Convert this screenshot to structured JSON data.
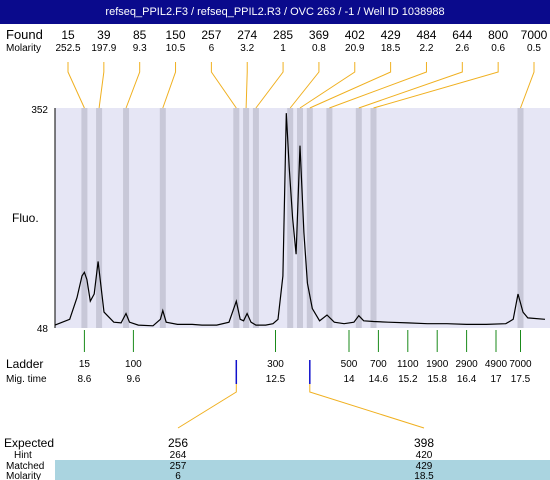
{
  "window": {
    "title": "refseq_PPIL2.F3 / refseq_PPIL2.R3 / OVC 263 / -1 / Well ID 1038988"
  },
  "colors": {
    "title_bg": "#0a0a8c",
    "plot_bg": "#e6e6f5",
    "band": "#c8c8d8",
    "connector": "#f0b020",
    "ladder_tick": "#1a8a1a",
    "expected_tick": "#1010cc",
    "matched_bg": "#aad4e0"
  },
  "chart_data": {
    "type": "line",
    "labels": {
      "found": "Found",
      "molarity": "Molarity",
      "fluo": "Fluo.",
      "ladder": "Ladder",
      "mig_time": "Mig. time",
      "expected": "Expected",
      "hint": "Hint",
      "matched": "Matched",
      "molarity_bottom": "Molarity"
    },
    "ylim": [
      48,
      352
    ],
    "y_tick_labels": [
      "352",
      "48"
    ],
    "xlim": [
      8.0,
      18.0
    ],
    "found_peaks": [
      {
        "size": "15",
        "molarity": "252.5",
        "time": 8.6
      },
      {
        "size": "39",
        "molarity": "197.9",
        "time": 8.9
      },
      {
        "size": "85",
        "molarity": "9.3",
        "time": 9.45
      },
      {
        "size": "150",
        "molarity": "10.5",
        "time": 10.2
      },
      {
        "size": "257",
        "molarity": "6",
        "time": 11.7
      },
      {
        "size": "274",
        "molarity": "3.2",
        "time": 11.9
      },
      {
        "size": "285",
        "molarity": "1",
        "time": 12.1
      },
      {
        "size": "369",
        "molarity": "0.8",
        "time": 12.8
      },
      {
        "size": "402",
        "molarity": "20.9",
        "time": 13.0
      },
      {
        "size": "429",
        "molarity": "18.5",
        "time": 13.2
      },
      {
        "size": "484",
        "molarity": "2.2",
        "time": 13.6
      },
      {
        "size": "644",
        "molarity": "2.6",
        "time": 14.2
      },
      {
        "size": "800",
        "molarity": "0.6",
        "time": 14.5
      },
      {
        "size": "7000",
        "molarity": "0.5",
        "time": 17.5
      }
    ],
    "ladder": [
      {
        "size": "15",
        "time": "8.6"
      },
      {
        "size": "100",
        "time": "9.6"
      },
      {
        "size": "300",
        "time": "12.5"
      },
      {
        "size": "500",
        "time": "14"
      },
      {
        "size": "700",
        "time": "14.6"
      },
      {
        "size": "1100",
        "time": "15.2"
      },
      {
        "size": "1900",
        "time": "15.8"
      },
      {
        "size": "2900",
        "time": "16.4"
      },
      {
        "size": "4900",
        "time": "17"
      },
      {
        "size": "7000",
        "time": "17.5"
      }
    ],
    "expected": [
      {
        "size": "256",
        "hint": "264",
        "matched": "257",
        "molarity": "6",
        "time": 11.7
      },
      {
        "size": "398",
        "hint": "420",
        "matched": "429",
        "molarity": "18.5",
        "time": 13.2
      }
    ],
    "trace": [
      [
        8.0,
        52
      ],
      [
        8.3,
        60
      ],
      [
        8.45,
        90
      ],
      [
        8.55,
        120
      ],
      [
        8.6,
        125
      ],
      [
        8.65,
        115
      ],
      [
        8.72,
        85
      ],
      [
        8.8,
        95
      ],
      [
        8.88,
        140
      ],
      [
        8.93,
        110
      ],
      [
        9.0,
        70
      ],
      [
        9.2,
        56
      ],
      [
        9.35,
        55
      ],
      [
        9.45,
        68
      ],
      [
        9.52,
        56
      ],
      [
        9.7,
        52
      ],
      [
        10.0,
        51
      ],
      [
        10.15,
        60
      ],
      [
        10.2,
        72
      ],
      [
        10.27,
        56
      ],
      [
        10.5,
        53
      ],
      [
        10.8,
        53
      ],
      [
        11.0,
        52
      ],
      [
        11.3,
        52
      ],
      [
        11.55,
        56
      ],
      [
        11.7,
        85
      ],
      [
        11.78,
        60
      ],
      [
        11.85,
        58
      ],
      [
        11.92,
        68
      ],
      [
        12.0,
        56
      ],
      [
        12.1,
        52
      ],
      [
        12.3,
        52
      ],
      [
        12.45,
        54
      ],
      [
        12.55,
        60
      ],
      [
        12.65,
        120
      ],
      [
        12.72,
        345
      ],
      [
        12.78,
        270
      ],
      [
        12.85,
        200
      ],
      [
        12.92,
        150
      ],
      [
        13.0,
        300
      ],
      [
        13.08,
        180
      ],
      [
        13.15,
        110
      ],
      [
        13.25,
        75
      ],
      [
        13.4,
        58
      ],
      [
        13.55,
        66
      ],
      [
        13.7,
        56
      ],
      [
        13.9,
        54
      ],
      [
        14.1,
        56
      ],
      [
        14.2,
        65
      ],
      [
        14.3,
        58
      ],
      [
        14.5,
        57
      ],
      [
        14.8,
        56
      ],
      [
        15.2,
        55
      ],
      [
        15.6,
        54
      ],
      [
        16.0,
        54
      ],
      [
        16.4,
        53
      ],
      [
        16.8,
        53
      ],
      [
        17.2,
        54
      ],
      [
        17.35,
        60
      ],
      [
        17.45,
        95
      ],
      [
        17.55,
        70
      ],
      [
        17.65,
        62
      ],
      [
        18.0,
        60
      ]
    ]
  }
}
